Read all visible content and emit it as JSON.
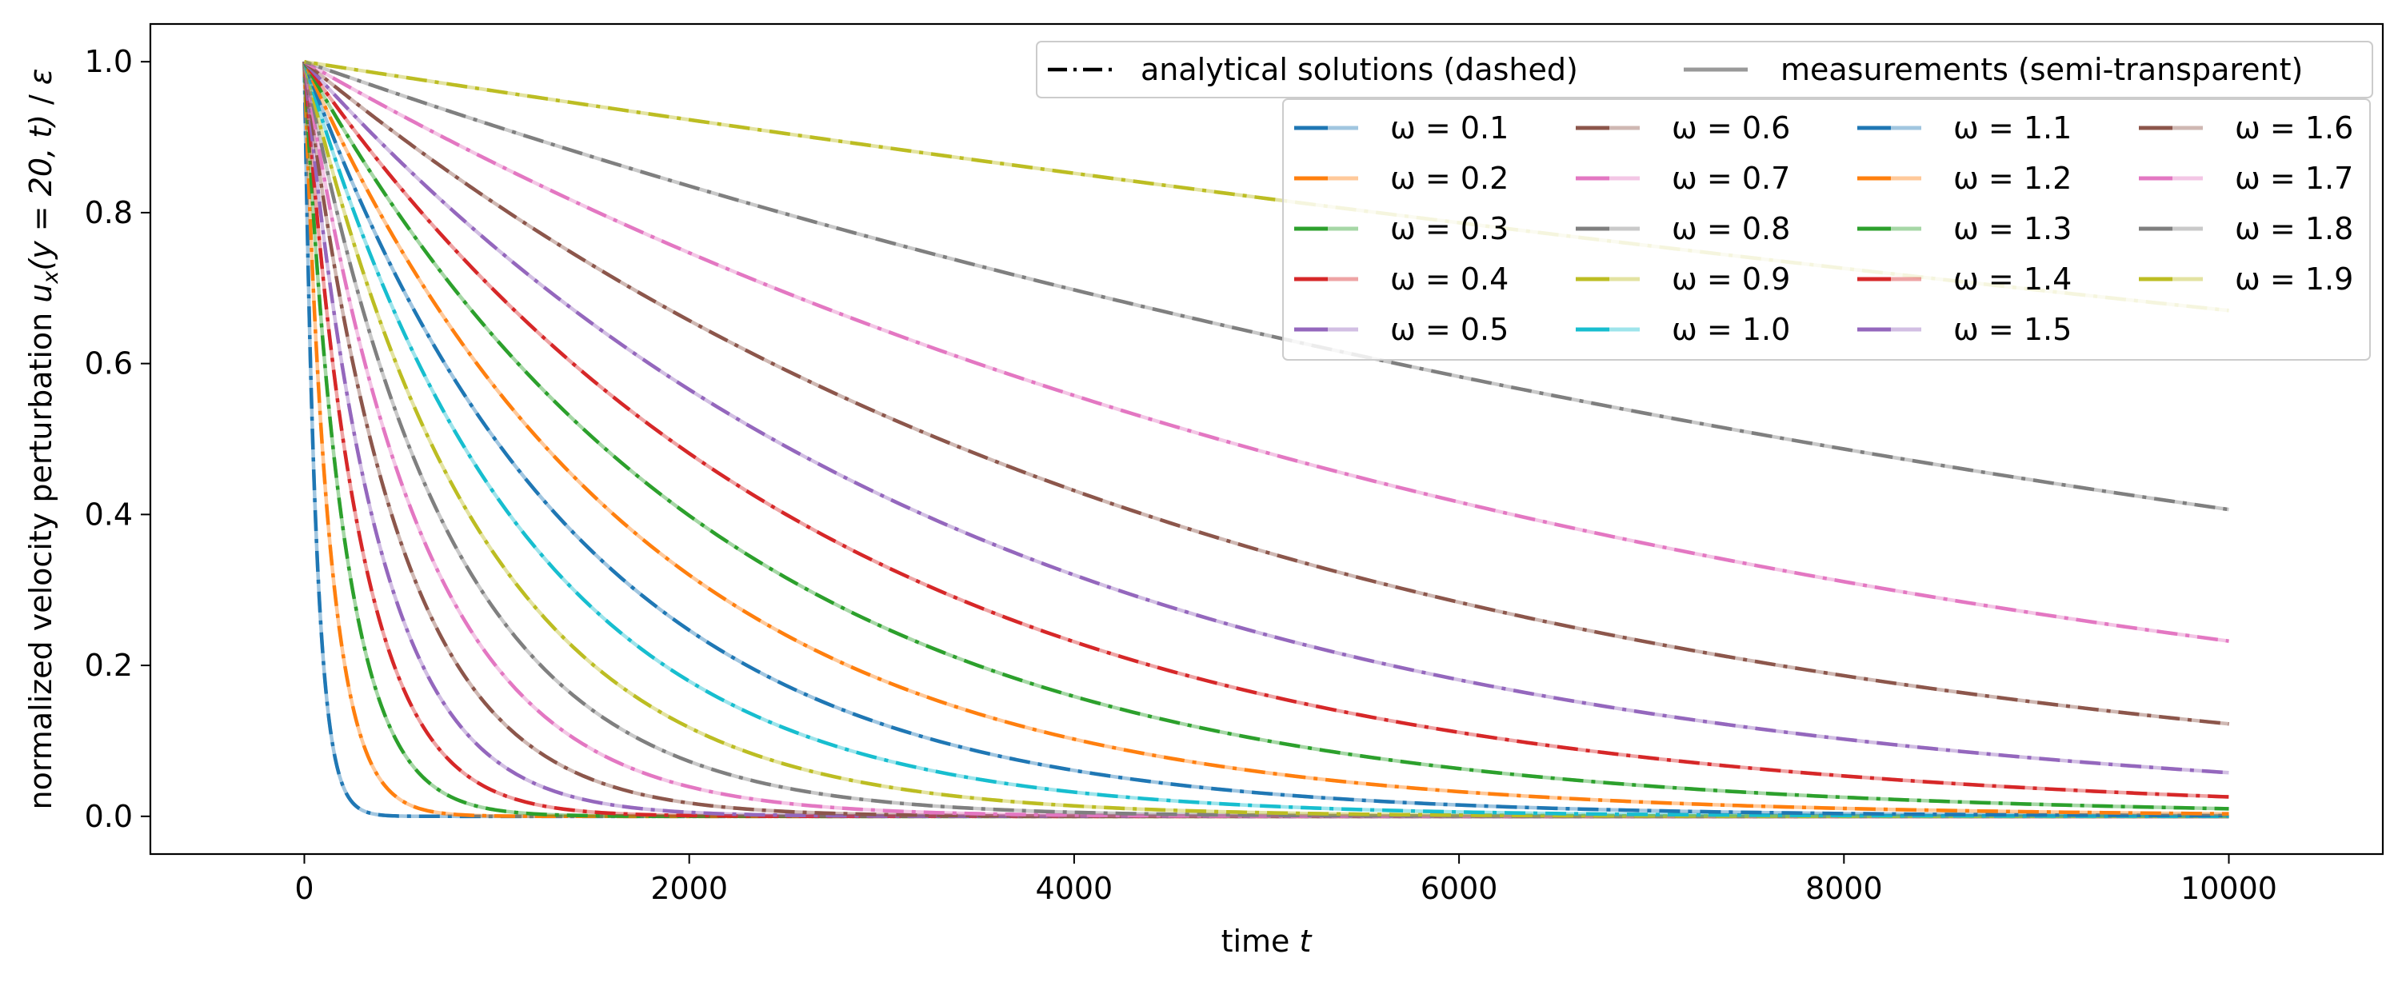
{
  "chart_data": {
    "type": "line",
    "title": "",
    "xlabel": "time t",
    "ylabel": "normalized velocity perturbation u_x(y = 20, t) / ε",
    "xlabel_parts": {
      "main": "time ",
      "var": "t"
    },
    "ylabel_parts": {
      "main": "normalized velocity perturbation ",
      "u": "u",
      "sub": "x",
      "args": "(y = 20, t)",
      "div": " / ",
      "eps": "ε"
    },
    "xlim": [
      -800,
      10800
    ],
    "ylim": [
      -0.05,
      1.05
    ],
    "xticks": [
      0,
      2000,
      4000,
      6000,
      8000,
      10000
    ],
    "xtick_labels": [
      "0",
      "2000",
      "4000",
      "6000",
      "8000",
      "10000"
    ],
    "yticks": [
      0.0,
      0.2,
      0.4,
      0.6,
      0.8,
      1.0
    ],
    "ytick_labels": [
      "0.0",
      "0.2",
      "0.4",
      "0.6",
      "0.8",
      "1.0"
    ],
    "grid": false,
    "style_legend": {
      "placement": "top-right",
      "entries": [
        {
          "label": "analytical solutions (dashed)",
          "style": "dashdot"
        },
        {
          "label": "measurements (semi-transparent)",
          "style": "solid-transparent"
        }
      ]
    },
    "series_legend": {
      "placement": "upper-right, below style legend",
      "columns": 4
    },
    "x": [
      0,
      10,
      20,
      35,
      50,
      70,
      100,
      130,
      170,
      220,
      280,
      350,
      450,
      550,
      700,
      850,
      1000,
      1200,
      1400,
      1650,
      1900,
      2200,
      2500,
      2800,
      3200,
      3600,
      4000,
      4500,
      5000,
      5500,
      6000,
      6600,
      7200,
      7800,
      8400,
      9000,
      9500,
      10000
    ],
    "series": [
      {
        "name": "ω = 0.1",
        "label": "ω = 0.1",
        "rate": 0.016,
        "color": "#1f77b4"
      },
      {
        "name": "ω = 0.2",
        "label": "ω = 0.2",
        "rate": 0.00765,
        "color": "#ff7f0e"
      },
      {
        "name": "ω = 0.3",
        "label": "ω = 0.3",
        "rate": 0.0048,
        "color": "#2ca02c"
      },
      {
        "name": "ω = 0.4",
        "label": "ω = 0.4",
        "rate": 0.00345,
        "color": "#d62728"
      },
      {
        "name": "ω = 0.5",
        "label": "ω = 0.5",
        "rate": 0.00262,
        "color": "#9467bd"
      },
      {
        "name": "ω = 0.6",
        "label": "ω = 0.6",
        "rate": 0.00202,
        "color": "#8c564b"
      },
      {
        "name": "ω = 0.7",
        "label": "ω = 0.7",
        "rate": 0.00162,
        "color": "#e377c2"
      },
      {
        "name": "ω = 0.8",
        "label": "ω = 0.8",
        "rate": 0.00131,
        "color": "#7f7f7f"
      },
      {
        "name": "ω = 0.9",
        "label": "ω = 0.9",
        "rate": 0.00107,
        "color": "#bcbd22"
      },
      {
        "name": "ω = 1.0",
        "label": "ω = 1.0",
        "rate": 0.00086,
        "color": "#17becf"
      },
      {
        "name": "ω = 1.1",
        "label": "ω = 1.1",
        "rate": 0.0007,
        "color": "#1f77b4"
      },
      {
        "name": "ω = 1.2",
        "label": "ω = 1.2",
        "rate": 0.00057,
        "color": "#ff7f0e"
      },
      {
        "name": "ω = 1.3",
        "label": "ω = 1.3",
        "rate": 0.00046,
        "color": "#2ca02c"
      },
      {
        "name": "ω = 1.4",
        "label": "ω = 1.4",
        "rate": 0.000366,
        "color": "#d62728"
      },
      {
        "name": "ω = 1.5",
        "label": "ω = 1.5",
        "rate": 0.000285,
        "color": "#9467bd"
      },
      {
        "name": "ω = 1.6",
        "label": "ω = 1.6",
        "rate": 0.00021,
        "color": "#8c564b"
      },
      {
        "name": "ω = 1.7",
        "label": "ω = 1.7",
        "rate": 0.000146,
        "color": "#e377c2"
      },
      {
        "name": "ω = 1.8",
        "label": "ω = 1.8",
        "rate": 9e-05,
        "color": "#7f7f7f"
      },
      {
        "name": "ω = 1.9",
        "label": "ω = 1.9",
        "rate": 4e-05,
        "color": "#bcbd22"
      }
    ],
    "notes_values_at_t10000": {
      "ω = 1.9": 0.58,
      "ω = 1.8": 0.32,
      "ω = 1.7": 0.16,
      "ω = 1.6": 0.077,
      "ω = 1.5": 0.033,
      "ω = 1.4": 0.013
    }
  }
}
